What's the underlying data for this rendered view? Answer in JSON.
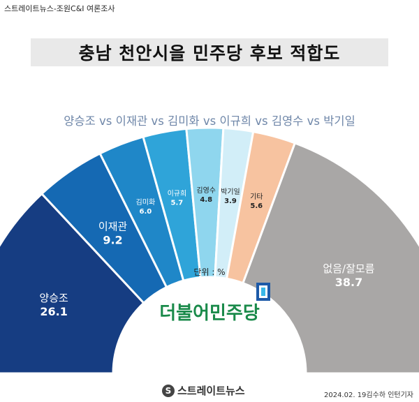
{
  "header": {
    "source": "스트레이트뉴스-조원C&I 여론조사",
    "title": "충남 천안시을 민주당 후보 적합도"
  },
  "subtitle": "양승조 vs 이재관 vs 김미화 vs 이규희 vs 김영수 vs 박기일",
  "unit_label": "단위 : %",
  "party": {
    "name": "더불어민주당",
    "color": "#1a8a4a",
    "accent": "#1d5aa8"
  },
  "chart_data": {
    "type": "pie",
    "shape": "semicircle",
    "title": "충남 천안시을 민주당 후보 적합도",
    "unit": "%",
    "categories": [
      "양승조",
      "이재관",
      "김미화",
      "이규희",
      "김영수",
      "박기일",
      "기타",
      "없음/잘모름"
    ],
    "values": [
      26.1,
      9.2,
      6.0,
      5.7,
      4.8,
      3.9,
      5.6,
      38.7
    ],
    "colors": [
      "#163d82",
      "#1569b3",
      "#1f87c8",
      "#2fa4d9",
      "#8fd6ee",
      "#d2eef8",
      "#f7c3a0",
      "#a9a7a6"
    ],
    "label_colors": [
      "#ffffff",
      "#ffffff",
      "#ffffff",
      "#ffffff",
      "#222222",
      "#222222",
      "#222222",
      "#ffffff"
    ],
    "legend": "none"
  },
  "footer": {
    "brand": "스트레이트뉴스",
    "credit": "2024.02. 19김수하 인턴기자"
  }
}
